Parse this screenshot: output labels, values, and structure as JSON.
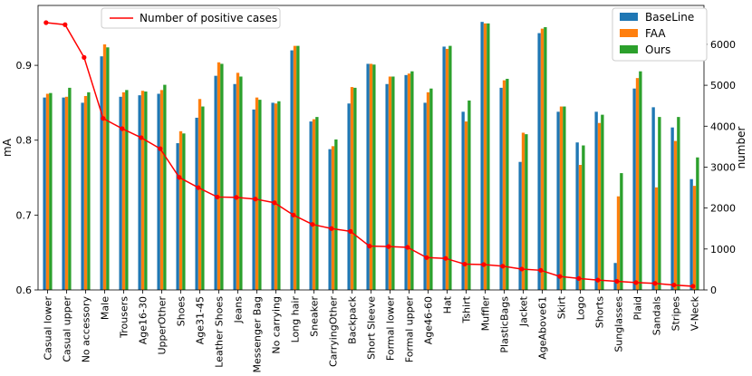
{
  "chart_data": {
    "type": "bar",
    "categories": [
      "Casual lower",
      "Casual upper",
      "No accessory",
      "Male",
      "Trousers",
      "Age16-30",
      "UpperOther",
      "Shoes",
      "Age31-45",
      "Leather Shoes",
      "Jeans",
      "Messenger Bag",
      "No carrying",
      "Long hair",
      "Sneaker",
      "CarryingOther",
      "Backpack",
      "Short Sleeve",
      "Formal lower",
      "Formal upper",
      "Age46-60",
      "Hat",
      "Tshirt",
      "Muffler",
      "PlasticBags",
      "Jacket",
      "AgeAbove61",
      "Skirt",
      "Logo",
      "Shorts",
      "Sunglasses",
      "Plaid",
      "Sandals",
      "Stripes",
      "V-Neck"
    ],
    "series": [
      {
        "name": "BaseLine",
        "color": "#1f77b4",
        "axis": "left",
        "values": [
          0.857,
          0.857,
          0.85,
          0.912,
          0.858,
          0.86,
          0.862,
          0.796,
          0.83,
          0.886,
          0.875,
          0.841,
          0.85,
          0.92,
          0.825,
          0.788,
          0.849,
          0.902,
          0.875,
          0.887,
          0.85,
          0.925,
          0.838,
          0.958,
          0.87,
          0.771,
          0.943,
          0.838,
          0.797,
          0.838,
          0.636,
          0.869,
          0.844,
          0.817,
          0.748
        ]
      },
      {
        "name": "FAA",
        "color": "#ff7f0e",
        "axis": "left",
        "values": [
          0.862,
          0.858,
          0.859,
          0.928,
          0.864,
          0.866,
          0.867,
          0.812,
          0.855,
          0.904,
          0.89,
          0.857,
          0.849,
          0.926,
          0.828,
          0.792,
          0.871,
          0.902,
          0.885,
          0.889,
          0.864,
          0.922,
          0.825,
          0.956,
          0.88,
          0.81,
          0.949,
          0.845,
          0.767,
          0.823,
          0.725,
          0.883,
          0.737,
          0.799,
          0.739
        ]
      },
      {
        "name": "Ours",
        "color": "#2ca02c",
        "axis": "left",
        "values": [
          0.863,
          0.87,
          0.864,
          0.924,
          0.867,
          0.865,
          0.874,
          0.809,
          0.845,
          0.902,
          0.885,
          0.854,
          0.852,
          0.926,
          0.831,
          0.801,
          0.87,
          0.901,
          0.885,
          0.892,
          0.869,
          0.926,
          0.853,
          0.956,
          0.882,
          0.808,
          0.951,
          0.845,
          0.793,
          0.834,
          0.756,
          0.892,
          0.831,
          0.831,
          0.777
        ]
      },
      {
        "name": "Number of positive cases",
        "color": "#ff0000",
        "axis": "right",
        "type": "line",
        "values": [
          6530,
          6480,
          5680,
          4190,
          3940,
          3720,
          3450,
          2750,
          2500,
          2270,
          2260,
          2220,
          2130,
          1830,
          1600,
          1500,
          1430,
          1070,
          1060,
          1040,
          790,
          770,
          630,
          620,
          580,
          510,
          480,
          330,
          280,
          240,
          210,
          180,
          160,
          120,
          90
        ]
      }
    ],
    "title": "",
    "xlabel": "",
    "ylabel": "mA",
    "y2label": "number",
    "ylim": [
      0.6,
      0.98
    ],
    "y2lim": [
      0,
      6950
    ],
    "yticks": [
      0.6,
      0.7,
      0.8,
      0.9
    ],
    "y2ticks": [
      0,
      1000,
      2000,
      3000,
      4000,
      5000,
      6000
    ],
    "legend_bars": "top-right",
    "legend_line": "top-left"
  }
}
